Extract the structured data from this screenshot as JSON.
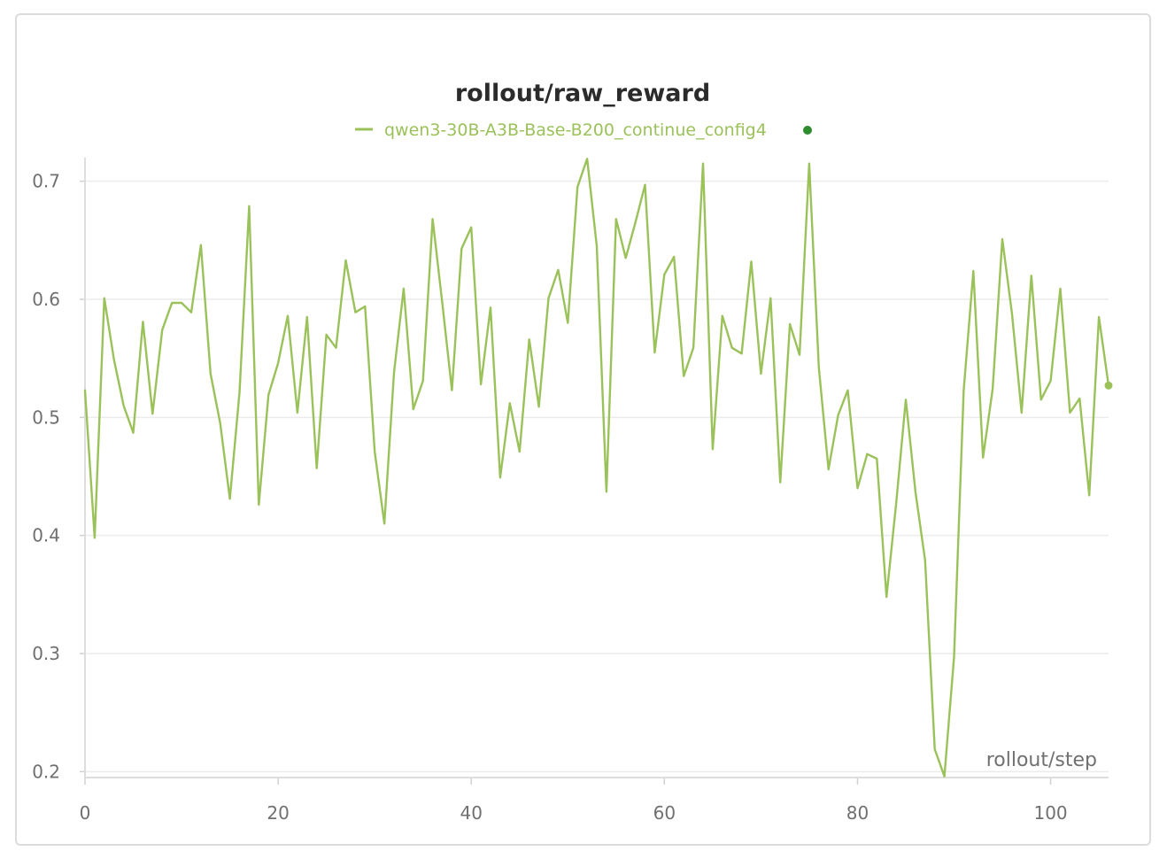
{
  "chart_data": {
    "type": "line",
    "title": "rollout/raw_reward",
    "xlabel": "rollout/step",
    "ylabel": "",
    "xlim": [
      0,
      106
    ],
    "ylim": [
      0.195,
      0.72
    ],
    "xticks": [
      0,
      20,
      40,
      60,
      80,
      100
    ],
    "yticks": [
      0.2,
      0.3,
      0.4,
      0.5,
      0.6,
      0.7
    ],
    "grid": true,
    "legend_position": "top-center",
    "series": [
      {
        "name": "qwen3-30B-A3B-Base-B200_continue_config4",
        "color": "#9bc15a",
        "marker_color": "#2e8b2e",
        "x": [
          0,
          1,
          2,
          3,
          4,
          5,
          6,
          7,
          8,
          9,
          10,
          11,
          12,
          13,
          14,
          15,
          16,
          17,
          18,
          19,
          20,
          21,
          22,
          23,
          24,
          25,
          26,
          27,
          28,
          29,
          30,
          31,
          32,
          33,
          34,
          35,
          36,
          37,
          38,
          39,
          40,
          41,
          42,
          43,
          44,
          45,
          46,
          47,
          48,
          49,
          50,
          51,
          52,
          53,
          54,
          55,
          56,
          57,
          58,
          59,
          60,
          61,
          62,
          63,
          64,
          65,
          66,
          67,
          68,
          69,
          70,
          71,
          72,
          73,
          74,
          75,
          76,
          77,
          78,
          79,
          80,
          81,
          82,
          83,
          84,
          85,
          86,
          87,
          88,
          89,
          90,
          91,
          92,
          93,
          94,
          95,
          96,
          97,
          98,
          99,
          100,
          101,
          102,
          103,
          104,
          105,
          106
        ],
        "y": [
          0.523,
          0.398,
          0.601,
          0.549,
          0.51,
          0.487,
          0.581,
          0.503,
          0.574,
          0.597,
          0.597,
          0.589,
          0.646,
          0.537,
          0.495,
          0.431,
          0.521,
          0.679,
          0.426,
          0.519,
          0.546,
          0.586,
          0.504,
          0.585,
          0.457,
          0.57,
          0.559,
          0.633,
          0.589,
          0.594,
          0.471,
          0.41,
          0.538,
          0.609,
          0.507,
          0.531,
          0.668,
          0.597,
          0.523,
          0.643,
          0.661,
          0.528,
          0.593,
          0.449,
          0.512,
          0.471,
          0.566,
          0.509,
          0.601,
          0.625,
          0.58,
          0.695,
          0.719,
          0.645,
          0.437,
          0.668,
          0.635,
          0.665,
          0.697,
          0.555,
          0.621,
          0.636,
          0.535,
          0.559,
          0.715,
          0.473,
          0.586,
          0.559,
          0.554,
          0.632,
          0.537,
          0.601,
          0.445,
          0.579,
          0.553,
          0.715,
          0.542,
          0.456,
          0.502,
          0.523,
          0.44,
          0.469,
          0.465,
          0.348,
          0.427,
          0.515,
          0.437,
          0.379,
          0.219,
          0.196,
          0.297,
          0.523,
          0.624,
          0.466,
          0.524,
          0.651,
          0.588,
          0.504,
          0.62,
          0.515,
          0.531,
          0.609,
          0.504,
          0.516,
          0.434,
          0.585,
          0.527
        ]
      }
    ]
  }
}
